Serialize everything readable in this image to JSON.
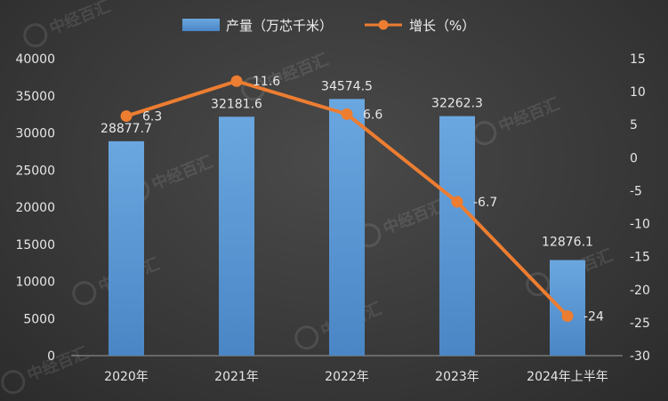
{
  "chart_data": {
    "type": "bar",
    "categories": [
      "2020年",
      "2021年",
      "2022年",
      "2023年",
      "2024年上半年"
    ],
    "series": [
      {
        "name": "产量（万芯千米）",
        "type": "bar",
        "axis": "left",
        "values": [
          28877.7,
          32181.6,
          34574.5,
          32262.3,
          12876.1
        ],
        "labels": [
          "28877.7",
          "32181.6",
          "34574.5",
          "32262.3",
          "12876.1"
        ],
        "color": "#5b9bd5"
      },
      {
        "name": "增长（%）",
        "type": "line",
        "axis": "right",
        "values": [
          6.3,
          11.6,
          6.6,
          -6.7,
          -24
        ],
        "labels": [
          "6.3",
          "11.6",
          "6.6",
          "-6.7",
          "-24"
        ],
        "color": "#ed7d31"
      }
    ],
    "ylim_left": [
      0,
      40000
    ],
    "yticks_left": [
      "0",
      "5000",
      "10000",
      "15000",
      "20000",
      "25000",
      "30000",
      "35000",
      "40000"
    ],
    "ylim_right": [
      -30,
      15
    ],
    "yticks_right": [
      "-30",
      "-25",
      "-20",
      "-15",
      "-10",
      "-5",
      "0",
      "5",
      "10",
      "15"
    ],
    "legend_position": "top-center",
    "grid": false
  },
  "watermark": {
    "text": "中经百汇",
    "badge": "ZZ"
  }
}
